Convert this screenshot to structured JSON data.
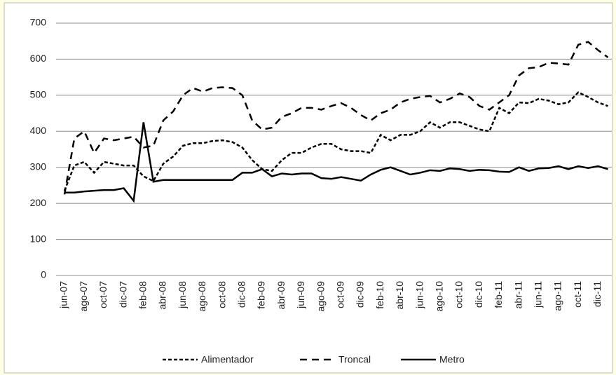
{
  "chart_data": {
    "type": "line",
    "categories": [
      "jun-07",
      null,
      "ago-07",
      null,
      "oct-07",
      null,
      "dic-07",
      null,
      "feb-08",
      null,
      "abr-08",
      null,
      "jun-08",
      null,
      "ago-08",
      null,
      "oct-08",
      null,
      "dic-08",
      null,
      "feb-09",
      null,
      "abr-09",
      null,
      "jun-09",
      null,
      "ago-09",
      null,
      "oct-09",
      null,
      "dic-09",
      null,
      "feb-10",
      null,
      "abr-10",
      null,
      "jun-10",
      null,
      "ago-10",
      null,
      "oct-10",
      null,
      "dic-10",
      null,
      "feb-11",
      null,
      "abr-11",
      null,
      "jun-11",
      null,
      "ago-11",
      null,
      "oct-11",
      null,
      "dic-11",
      null
    ],
    "series": [
      {
        "name": "Alimentador",
        "color": "#000000",
        "dash": "5,3",
        "values": [
          235,
          305,
          315,
          285,
          315,
          310,
          305,
          305,
          275,
          262,
          310,
          330,
          360,
          367,
          367,
          373,
          375,
          370,
          355,
          320,
          295,
          290,
          320,
          340,
          340,
          355,
          365,
          365,
          350,
          345,
          345,
          340,
          390,
          375,
          390,
          390,
          400,
          425,
          410,
          425,
          425,
          415,
          405,
          400,
          465,
          450,
          480,
          478,
          490,
          485,
          475,
          480,
          508,
          495,
          480,
          470
        ]
      },
      {
        "name": "Troncal",
        "color": "#000000",
        "dash": "10,7",
        "values": [
          225,
          380,
          400,
          340,
          380,
          375,
          380,
          385,
          355,
          360,
          430,
          455,
          500,
          520,
          510,
          520,
          522,
          520,
          500,
          430,
          405,
          410,
          440,
          450,
          465,
          465,
          460,
          470,
          478,
          465,
          445,
          430,
          450,
          460,
          480,
          490,
          495,
          498,
          480,
          490,
          505,
          495,
          470,
          460,
          480,
          500,
          555,
          575,
          578,
          590,
          588,
          585,
          640,
          648,
          625,
          605
        ]
      },
      {
        "name": "Metro",
        "color": "#000000",
        "dash": "none",
        "values": [
          230,
          230,
          233,
          235,
          237,
          237,
          242,
          207,
          425,
          260,
          265,
          265,
          265,
          265,
          265,
          265,
          265,
          265,
          285,
          285,
          295,
          275,
          283,
          280,
          283,
          283,
          270,
          268,
          273,
          268,
          263,
          280,
          293,
          300,
          290,
          280,
          285,
          292,
          290,
          297,
          295,
          290,
          293,
          292,
          288,
          287,
          300,
          290,
          297,
          298,
          303,
          295,
          303,
          298,
          303,
          295
        ]
      }
    ],
    "ylim": [
      0,
      700
    ],
    "yticks": [
      0,
      100,
      200,
      300,
      400,
      500,
      600,
      700
    ],
    "grid": true
  }
}
